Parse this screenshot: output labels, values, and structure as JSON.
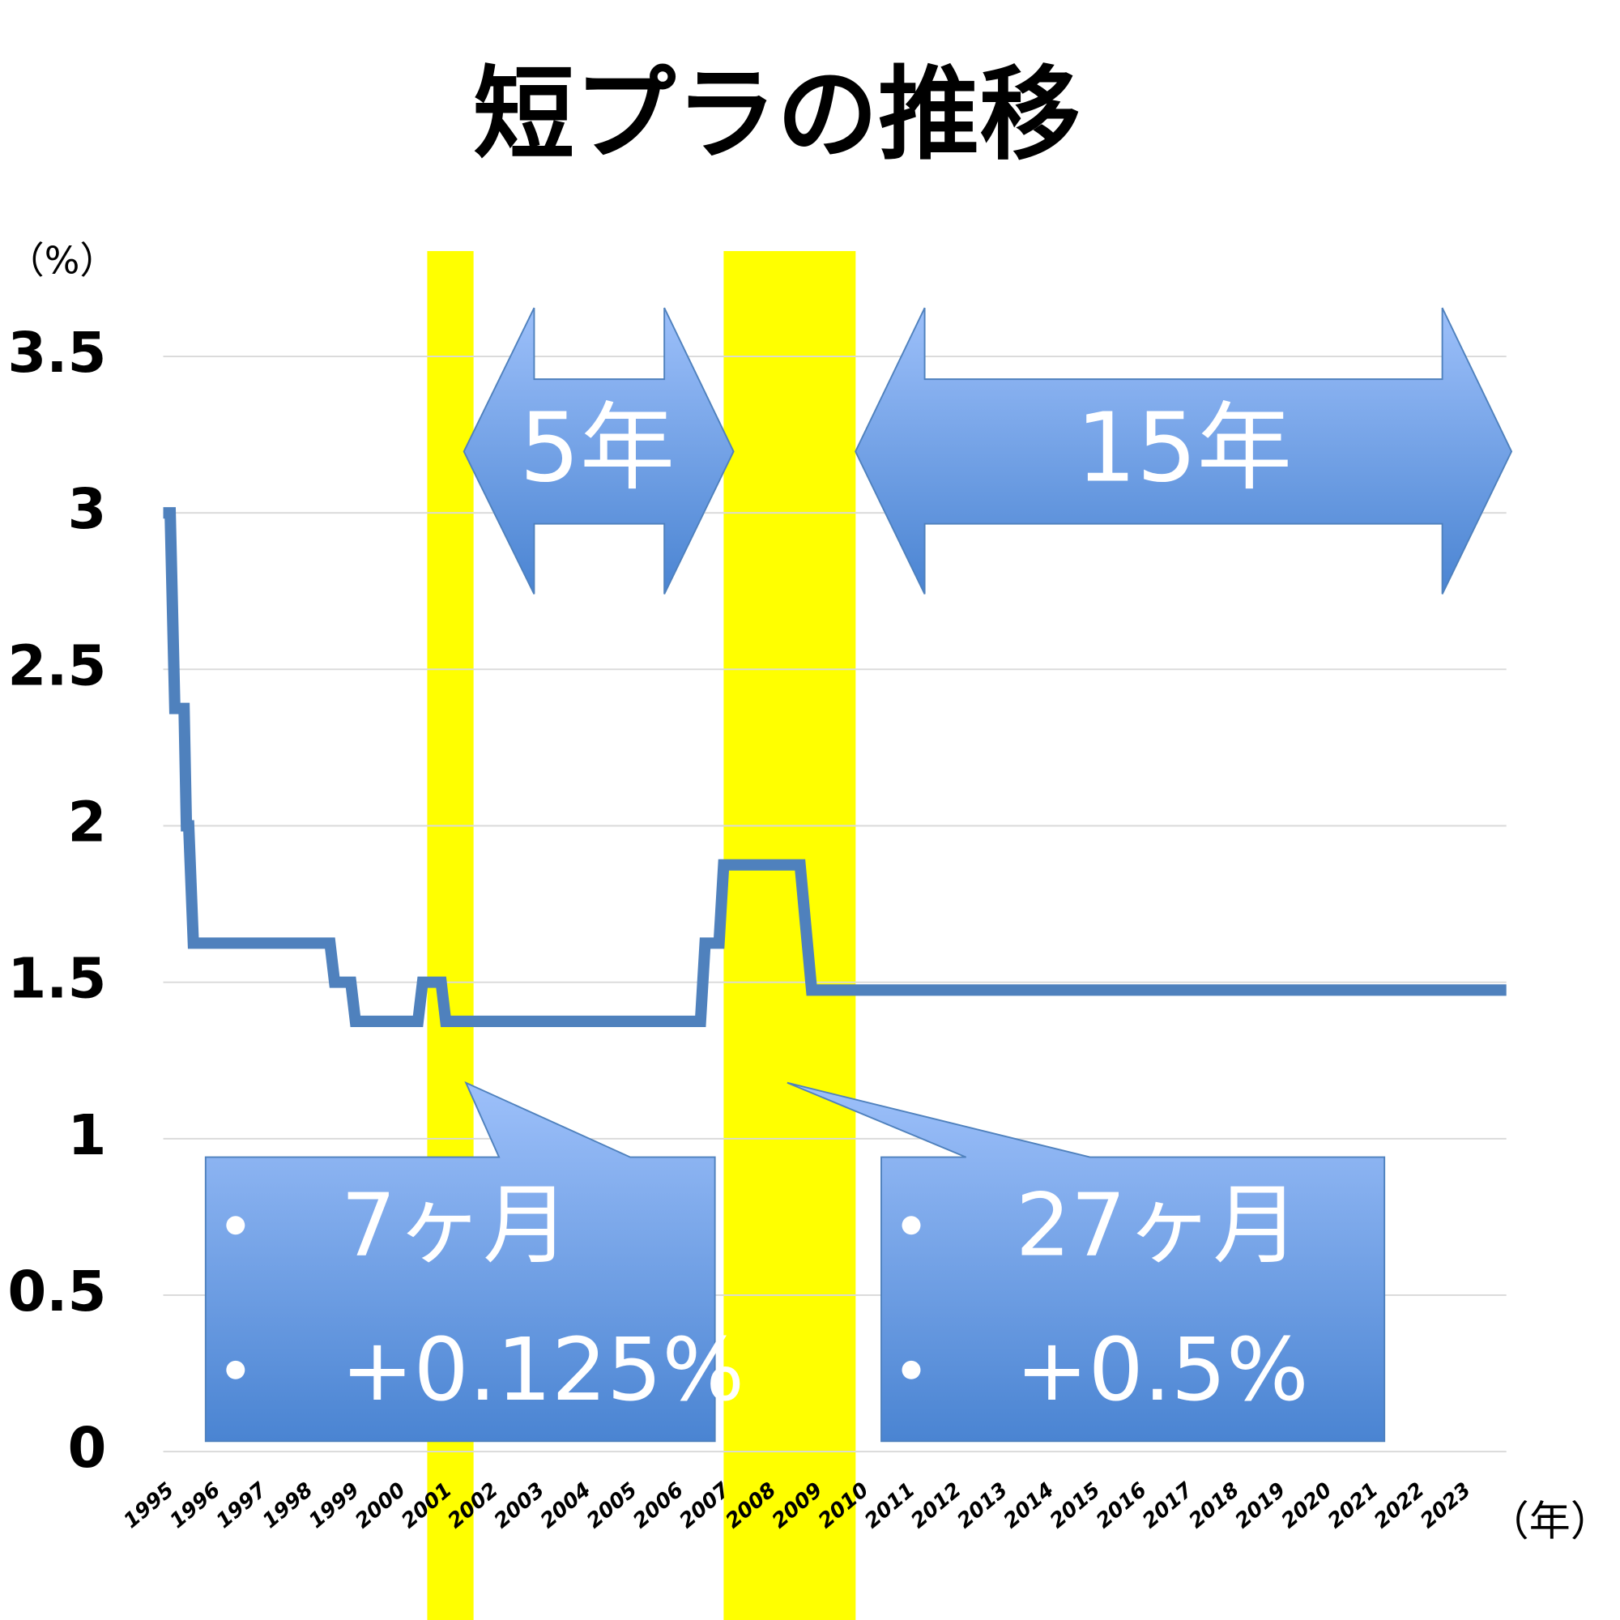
{
  "chart_data": {
    "type": "line",
    "title": "短プラの推移",
    "y_label": "（%）",
    "x_label": "（年）",
    "color": "#4f81bd",
    "x": [
      1995,
      1995.15,
      1995.25,
      1995.45,
      1995.5,
      1995.55,
      1995.65,
      1998.6,
      1998.7,
      1999.05,
      1999.15,
      2000.5,
      2000.6,
      2001.0,
      2001.1,
      2006.6,
      2006.7,
      2007.0,
      2007.1,
      2008.75,
      2009.0,
      2024
    ],
    "values": [
      3.0,
      3.0,
      2.375,
      2.375,
      2.0,
      2.0,
      1.625,
      1.625,
      1.5,
      1.5,
      1.375,
      1.375,
      1.5,
      1.5,
      1.375,
      1.375,
      1.625,
      1.625,
      1.875,
      1.875,
      1.475,
      1.475
    ],
    "xlim": [
      1995,
      2024
    ],
    "xticks": [
      1995,
      1996,
      1997,
      1998,
      1999,
      2000,
      2001,
      2002,
      2003,
      2004,
      2005,
      2006,
      2007,
      2008,
      2009,
      2010,
      2011,
      2012,
      2013,
      2014,
      2015,
      2016,
      2017,
      2018,
      2019,
      2020,
      2021,
      2022,
      2023
    ],
    "ylim": [
      0,
      3.5
    ],
    "yticks": [
      0,
      0.5,
      1,
      1.5,
      2,
      2.5,
      3,
      3.5
    ],
    "grid": true,
    "highlights": [
      {
        "x": [
          2000.7,
          2001.7
        ],
        "color": "#ffff00"
      },
      {
        "x": [
          2007.1,
          2009.95
        ],
        "color": "#ffff00"
      }
    ],
    "arrows": [
      "5年",
      "15年"
    ],
    "callouts": [
      {
        "lines": [
          "7ヶ月",
          "+0.125%"
        ]
      },
      {
        "lines": [
          "27ヶ月",
          "+0.5%"
        ]
      }
    ]
  }
}
